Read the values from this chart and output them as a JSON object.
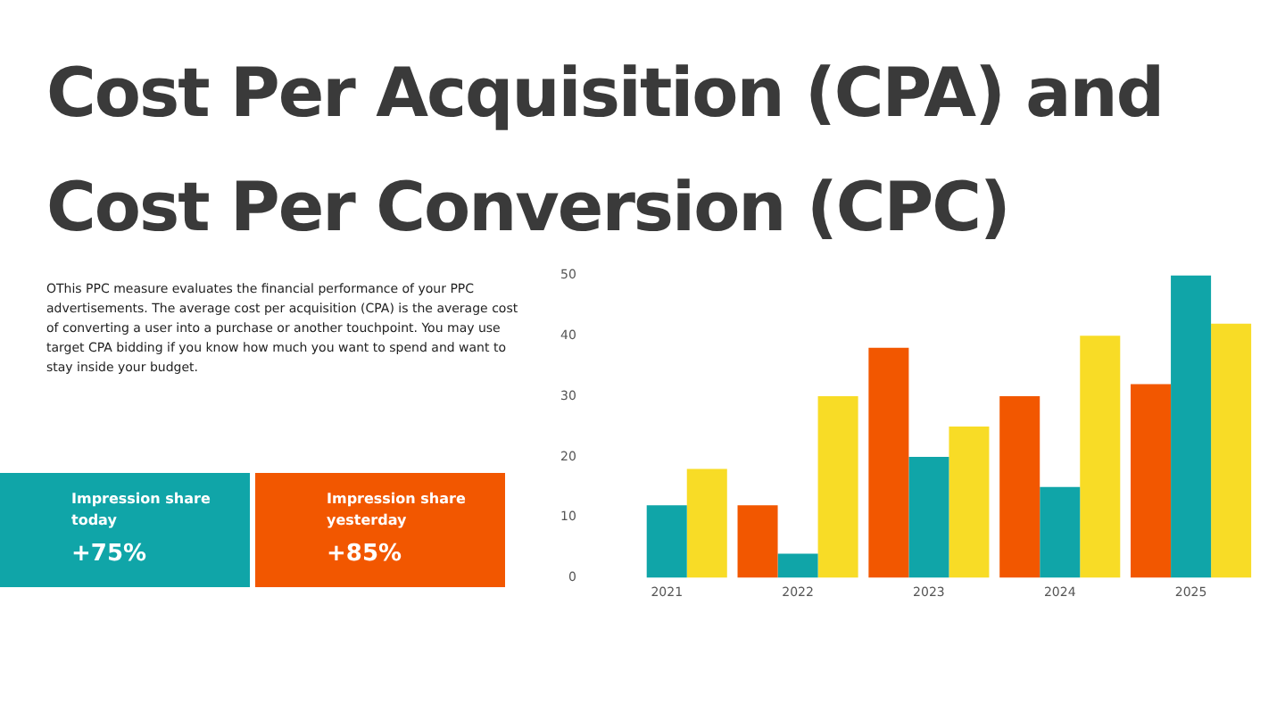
{
  "chart_data": {
    "type": "bar",
    "title": "Cost Per Acquisition (CPA) and Cost Per Conversion (CPC)",
    "subtitle": "OThis PPC measure evaluates the financial performance of your PPC advertisements. The average cost per acquisition (CPA) is the average cost of converting a user into a purchase or another touchpoint. You may use target CPA bidding if you know how much you want to spend and want to stay inside your budget.",
    "annotations": [
      "Impression share today",
      "+75%",
      "Impression share yesterday",
      "+85%"
    ],
    "categories": [
      "2021",
      "2022",
      "2023",
      "2024",
      "2025"
    ],
    "series": [
      {
        "color": "#f25700",
        "values": [
          null,
          12,
          38,
          30,
          32
        ]
      },
      {
        "color": "#10a5a8",
        "values": [
          12,
          4,
          20,
          15,
          50
        ]
      },
      {
        "color": "#f8dc26",
        "values": [
          18,
          30,
          25,
          40,
          42
        ]
      }
    ],
    "ylim": [
      0,
      50
    ],
    "yticks": [
      0,
      10,
      20,
      30,
      40,
      50
    ],
    "grid": false,
    "legend": false
  }
}
